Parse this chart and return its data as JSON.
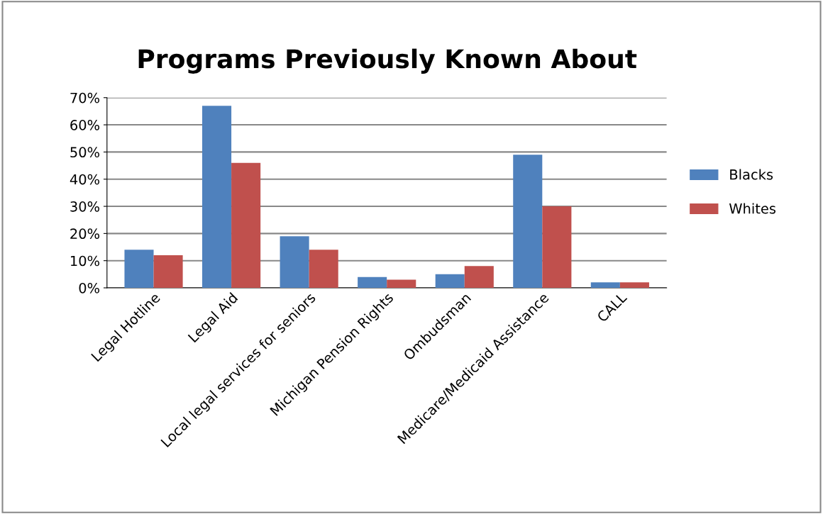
{
  "chart_data": {
    "type": "bar",
    "title": "Programs Previously Known About",
    "categories": [
      "Legal Hotline",
      "Legal Aid",
      "Local legal services for seniors",
      "Michigan Pension Rights",
      "Ombudsman",
      "Medicare/Medicaid Assistance",
      "CALL"
    ],
    "series": [
      {
        "name": "Blacks",
        "color": "#4f81bd",
        "values": [
          14,
          67,
          19,
          4,
          5,
          49,
          2
        ]
      },
      {
        "name": "Whites",
        "color": "#c0504d",
        "values": [
          12,
          46,
          14,
          3,
          8,
          30,
          2
        ]
      }
    ],
    "ylim": [
      0,
      70
    ],
    "yticks": [
      {
        "value": 0,
        "label": "0%"
      },
      {
        "value": 10,
        "label": "10%"
      },
      {
        "value": 20,
        "label": "20%"
      },
      {
        "value": 30,
        "label": "30%"
      },
      {
        "value": 40,
        "label": "40%"
      },
      {
        "value": 50,
        "label": "50%"
      },
      {
        "value": 60,
        "label": "60%"
      },
      {
        "value": 70,
        "label": "70%"
      }
    ],
    "grid": "y",
    "legend": "right"
  }
}
